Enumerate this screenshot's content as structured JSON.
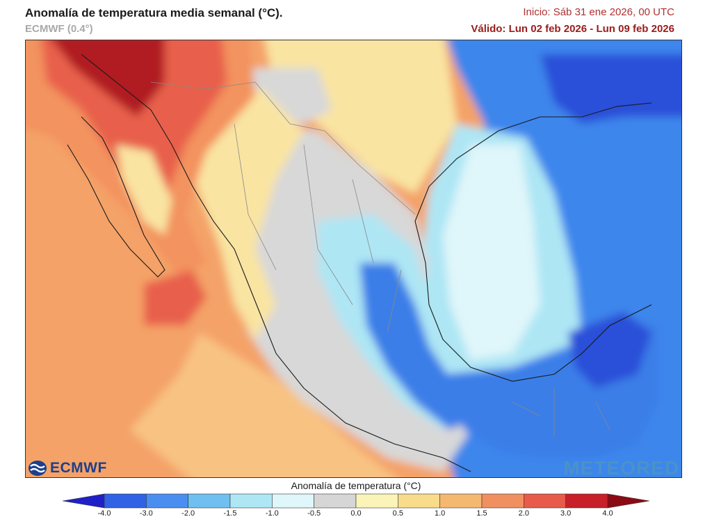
{
  "header": {
    "title": "Anomalía de temperatura media semanal (°C).",
    "model": "ECMWF (0.4°)",
    "init": "Inicio: Sáb 31 ene 2026, 00 UTC",
    "valid": "Válido: Lun 02 feb 2026 - Lun 09 feb 2026"
  },
  "logos": {
    "ecmwf": "ECMWF",
    "meteored": "METEORED"
  },
  "colorbar": {
    "title": "Anomalía de temperatura (°C)",
    "ticks": [
      "-4.0",
      "-3.0",
      "-2.0",
      "-1.5",
      "-1.0",
      "-0.5",
      "0.0",
      "0.5",
      "1.0",
      "1.5",
      "2.0",
      "3.0",
      "4.0"
    ],
    "colors": [
      "#2020c8",
      "#2f62e4",
      "#4a8ef0",
      "#6fc0f0",
      "#aee6f4",
      "#dff6fa",
      "#d6d6d6",
      "#faf4b8",
      "#f8dc8c",
      "#f5b870",
      "#f09060",
      "#e85a4a",
      "#c8202a",
      "#8c0a14"
    ]
  },
  "map": {
    "colors": {
      "ocean_pacific": "#f4a268",
      "pacific_near": "#f8c282",
      "hot_north": "#b01a24",
      "warm_red": "#e8604c",
      "orange": "#f3935e",
      "yellow": "#f9e4a2",
      "grey": "#d8d8d8",
      "light_cyan": "#dff6fa",
      "cyan": "#aee6f4",
      "sky": "#6fbcf0",
      "blue": "#3a7ee8",
      "deep_blue": "#2a4fd8",
      "gulf_blue": "#3e86ec"
    }
  }
}
